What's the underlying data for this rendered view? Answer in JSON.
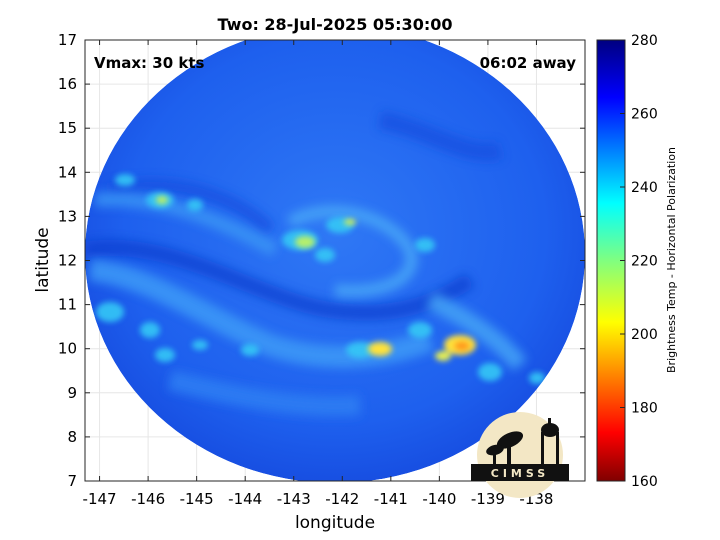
{
  "figure": {
    "title": "Two: 28-Jul-2025 05:30:00",
    "xlabel": "longitude",
    "ylabel": "latitude",
    "vmax_label": "Vmax: 30 kts",
    "time_away": "06:02 away",
    "colorbar_label": "Brightness Temp - Horizontal Polarization",
    "logo_text": "CIMSS"
  },
  "map": {
    "xlim": [
      -147.3,
      -137.0
    ],
    "ylim": [
      7,
      17
    ],
    "xticks": [
      "-147",
      "-146",
      "-145",
      "-144",
      "-143",
      "-142",
      "-141",
      "-140",
      "-139",
      "-138"
    ],
    "yticks": [
      "7",
      "8",
      "9",
      "10",
      "11",
      "12",
      "13",
      "14",
      "15",
      "16",
      "17"
    ],
    "grid": true,
    "swath_center": [
      -142.15,
      11.9
    ],
    "storm_center": [
      -142.3,
      12.4
    ]
  },
  "colorbar": {
    "range": [
      160,
      280
    ],
    "ticks": [
      "160",
      "180",
      "200",
      "220",
      "240",
      "260",
      "280"
    ],
    "colormap": "jet"
  },
  "colors": {
    "background_tb": "#1a5cf0",
    "rainband_cyan": "#35c8f5",
    "convection_yellow": "#ffe23a",
    "convection_orange": "#ff9a1c"
  }
}
